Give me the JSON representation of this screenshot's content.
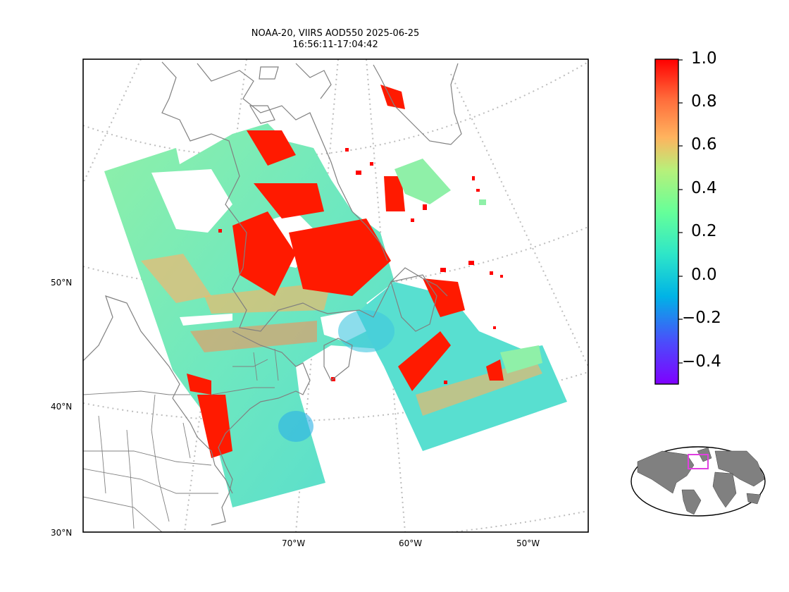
{
  "title": {
    "line1": "NOAA-20, VIIRS AOD550 2025-06-25",
    "line2": "16:56:11-17:04:42"
  },
  "lat_labels": [
    "50°N",
    "40°N",
    "30°N"
  ],
  "lon_labels": [
    "70°W",
    "60°W",
    "50°W"
  ],
  "colorbar": {
    "tick_labels": [
      "1.0",
      "0.8",
      "0.6",
      "0.4",
      "0.2",
      "0.0",
      "−0.2",
      "−0.4"
    ],
    "vmin": -0.5,
    "vmax": 1.0,
    "colormap": "rainbow",
    "colors": [
      "#7f00ff",
      "#3f5efb",
      "#00b3e6",
      "#2ee6c8",
      "#66ff99",
      "#b8f07a",
      "#ffb35e",
      "#ff6a3a",
      "#ff0000"
    ]
  },
  "map_colors": {
    "coastline": "#808080",
    "states": "#808080",
    "graticule": "#bdbdbd",
    "inset_land": "#808080",
    "inset_box": "#e040e0"
  }
}
